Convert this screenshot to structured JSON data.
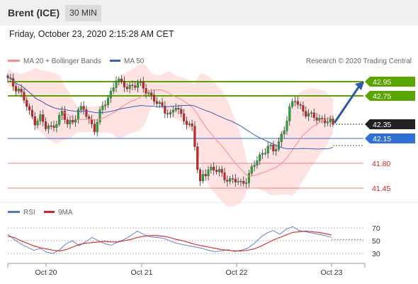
{
  "header": {
    "title": "Brent (ICE)",
    "timeframe": "30 MIN"
  },
  "date_line": "Friday, October 23, 2020 2:15:28 AM CET",
  "legend": {
    "ma20_bb": "MA 20 + Bollinger Bands",
    "ma50": "MA 50",
    "credit": "Research © 2020 Trading Central"
  },
  "rsi_legend": {
    "rsi": "RSI",
    "ma9": "9MA"
  },
  "colors": {
    "candle_up": "#22aa33",
    "candle_down": "#cc2222",
    "band_fill": "#ffd8d8",
    "ma20": "#ff8a8a",
    "ma50": "#3a62b8",
    "resistance": "#5aa500",
    "support_red": "#ee8080",
    "pivot_blue": "#2f6fd6",
    "current_price": "#222222",
    "arrow": "#2b5aa8",
    "rsi_line": "#5577cc",
    "rsi_ma": "#dd2222"
  },
  "chart_data": [
    {
      "type": "candlestick",
      "title": "Brent (ICE)",
      "timeframe": "30 MIN",
      "ylim": [
        41.3,
        43.1
      ],
      "x_ticks": [
        "Oct 20",
        "Oct 21",
        "Oct 22",
        "Oct 23"
      ],
      "levels": [
        {
          "label": "42.95",
          "value": 42.95,
          "kind": "resistance"
        },
        {
          "label": "42.75",
          "value": 42.75,
          "kind": "resistance"
        },
        {
          "label": "42.35",
          "value": 42.35,
          "kind": "current"
        },
        {
          "label": "42.15",
          "value": 42.15,
          "kind": "pivot"
        },
        {
          "label": "41.80",
          "value": 41.8,
          "kind": "support"
        },
        {
          "label": "41.45",
          "value": 41.45,
          "kind": "support"
        }
      ],
      "close_path": [
        [
          0,
          42.98
        ],
        [
          2,
          42.9
        ],
        [
          4,
          42.85
        ],
        [
          6,
          42.7
        ],
        [
          8,
          42.5
        ],
        [
          10,
          42.4
        ],
        [
          12,
          42.45
        ],
        [
          14,
          42.3
        ],
        [
          16,
          42.3
        ],
        [
          18,
          42.4
        ],
        [
          20,
          42.5
        ],
        [
          22,
          42.35
        ],
        [
          24,
          42.4
        ],
        [
          26,
          42.55
        ],
        [
          28,
          42.55
        ],
        [
          30,
          42.4
        ],
        [
          32,
          42.3
        ],
        [
          34,
          42.5
        ],
        [
          36,
          42.65
        ],
        [
          38,
          42.8
        ],
        [
          40,
          43.0
        ],
        [
          42,
          42.9
        ],
        [
          44,
          42.88
        ],
        [
          46,
          42.9
        ],
        [
          48,
          42.92
        ],
        [
          50,
          42.85
        ],
        [
          52,
          42.8
        ],
        [
          54,
          42.7
        ],
        [
          56,
          42.6
        ],
        [
          58,
          42.55
        ],
        [
          60,
          42.5
        ],
        [
          62,
          42.6
        ],
        [
          64,
          42.45
        ],
        [
          66,
          42.4
        ],
        [
          68,
          42.3
        ],
        [
          69,
          42.05
        ],
        [
          70,
          41.7
        ],
        [
          71,
          41.5
        ],
        [
          72,
          41.65
        ],
        [
          74,
          41.72
        ],
        [
          76,
          41.7
        ],
        [
          78,
          41.68
        ],
        [
          80,
          41.62
        ],
        [
          82,
          41.55
        ],
        [
          84,
          41.55
        ],
        [
          86,
          41.52
        ],
        [
          88,
          41.58
        ],
        [
          90,
          41.7
        ],
        [
          92,
          41.85
        ],
        [
          94,
          41.95
        ],
        [
          96,
          42.05
        ],
        [
          98,
          41.95
        ],
        [
          100,
          42.1
        ],
        [
          102,
          42.3
        ],
        [
          104,
          42.55
        ],
        [
          106,
          42.7
        ],
        [
          108,
          42.6
        ],
        [
          110,
          42.5
        ],
        [
          112,
          42.45
        ],
        [
          114,
          42.45
        ],
        [
          116,
          42.42
        ],
        [
          118,
          42.38
        ],
        [
          120,
          42.35
        ]
      ],
      "projection": {
        "from": [
          120,
          42.35
        ],
        "to": [
          132,
          42.95
        ]
      }
    },
    {
      "type": "line",
      "title": "RSI",
      "ylim": [
        20,
        80
      ],
      "y_ticks": [
        70,
        50,
        30
      ],
      "series": [
        {
          "name": "RSI",
          "values": [
            60,
            52,
            45,
            40,
            35,
            38,
            32,
            30,
            36,
            45,
            50,
            42,
            48,
            55,
            50,
            45,
            43,
            48,
            52,
            58,
            65,
            60,
            56,
            55,
            54,
            50,
            46,
            44,
            42,
            40,
            38,
            35,
            33,
            34,
            36,
            33,
            35,
            38,
            45,
            55,
            62,
            66,
            60,
            68,
            72,
            66,
            64,
            62,
            60,
            58,
            55
          ]
        },
        {
          "name": "9MA",
          "values": [
            57,
            55,
            50,
            46,
            42,
            39,
            37,
            35,
            34,
            36,
            40,
            44,
            46,
            47,
            48,
            49,
            48,
            48,
            50,
            52,
            55,
            57,
            58,
            58,
            57,
            55,
            52,
            50,
            47,
            44,
            42,
            40,
            38,
            36,
            35,
            34,
            34,
            35,
            37,
            41,
            46,
            51,
            55,
            59,
            63,
            64,
            65,
            64,
            63,
            61,
            59
          ]
        }
      ]
    }
  ]
}
